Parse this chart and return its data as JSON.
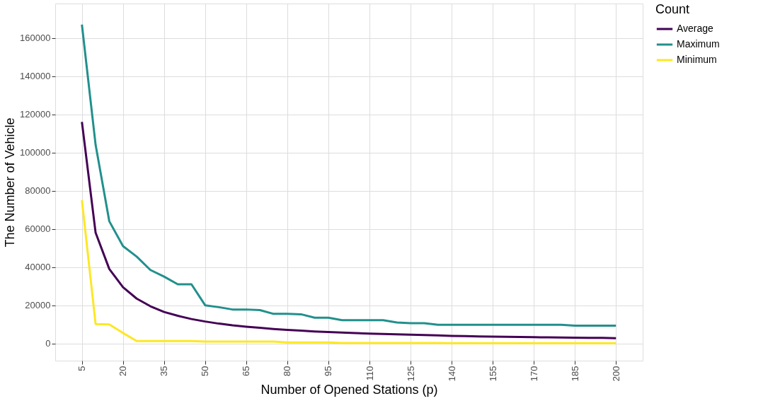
{
  "chart_data": {
    "type": "line",
    "xlabel": "Number of Opened Stations (p)",
    "ylabel": "The Number of Vehicle",
    "legend_title": "Count",
    "x": [
      5,
      10,
      15,
      20,
      25,
      30,
      35,
      40,
      45,
      50,
      55,
      60,
      65,
      70,
      75,
      80,
      85,
      90,
      95,
      100,
      105,
      110,
      115,
      120,
      125,
      130,
      135,
      140,
      145,
      150,
      155,
      160,
      165,
      170,
      175,
      180,
      185,
      190,
      195,
      200
    ],
    "series": [
      {
        "name": "Average",
        "color": "#440154",
        "values": [
          116000,
          58000,
          39000,
          29500,
          23500,
          19500,
          16500,
          14500,
          12800,
          11500,
          10400,
          9500,
          8800,
          8200,
          7600,
          7100,
          6700,
          6300,
          6000,
          5700,
          5400,
          5200,
          5000,
          4800,
          4600,
          4400,
          4200,
          4000,
          3900,
          3700,
          3600,
          3500,
          3400,
          3300,
          3200,
          3100,
          3000,
          2950,
          2900,
          2800
        ]
      },
      {
        "name": "Maximum",
        "color": "#21908c",
        "values": [
          167000,
          104000,
          64000,
          51000,
          45500,
          38500,
          35000,
          31000,
          31000,
          20000,
          19000,
          17800,
          17800,
          17500,
          15500,
          15500,
          15300,
          13500,
          13500,
          12200,
          12200,
          12200,
          12200,
          11000,
          10600,
          10600,
          9800,
          9800,
          9800,
          9800,
          9800,
          9800,
          9800,
          9800,
          9800,
          9800,
          9300,
          9300,
          9300,
          9300
        ]
      },
      {
        "name": "Minimum",
        "color": "#fde725",
        "values": [
          75000,
          10200,
          10000,
          5500,
          1300,
          1300,
          1300,
          1300,
          1300,
          1000,
          1000,
          1000,
          1000,
          1000,
          1000,
          500,
          500,
          500,
          500,
          300,
          300,
          300,
          300,
          300,
          300,
          300,
          300,
          200,
          200,
          200,
          200,
          200,
          200,
          200,
          200,
          200,
          200,
          200,
          200,
          200
        ]
      }
    ],
    "xlim": [
      -4.75,
      209.75
    ],
    "xticks": [
      5,
      20,
      35,
      50,
      65,
      80,
      95,
      110,
      125,
      140,
      155,
      170,
      185,
      200
    ],
    "ylim": [
      -9000,
      178000
    ],
    "yticks": [
      0,
      20000,
      40000,
      60000,
      80000,
      100000,
      120000,
      140000,
      160000
    ],
    "grid": true,
    "legend": "right"
  }
}
